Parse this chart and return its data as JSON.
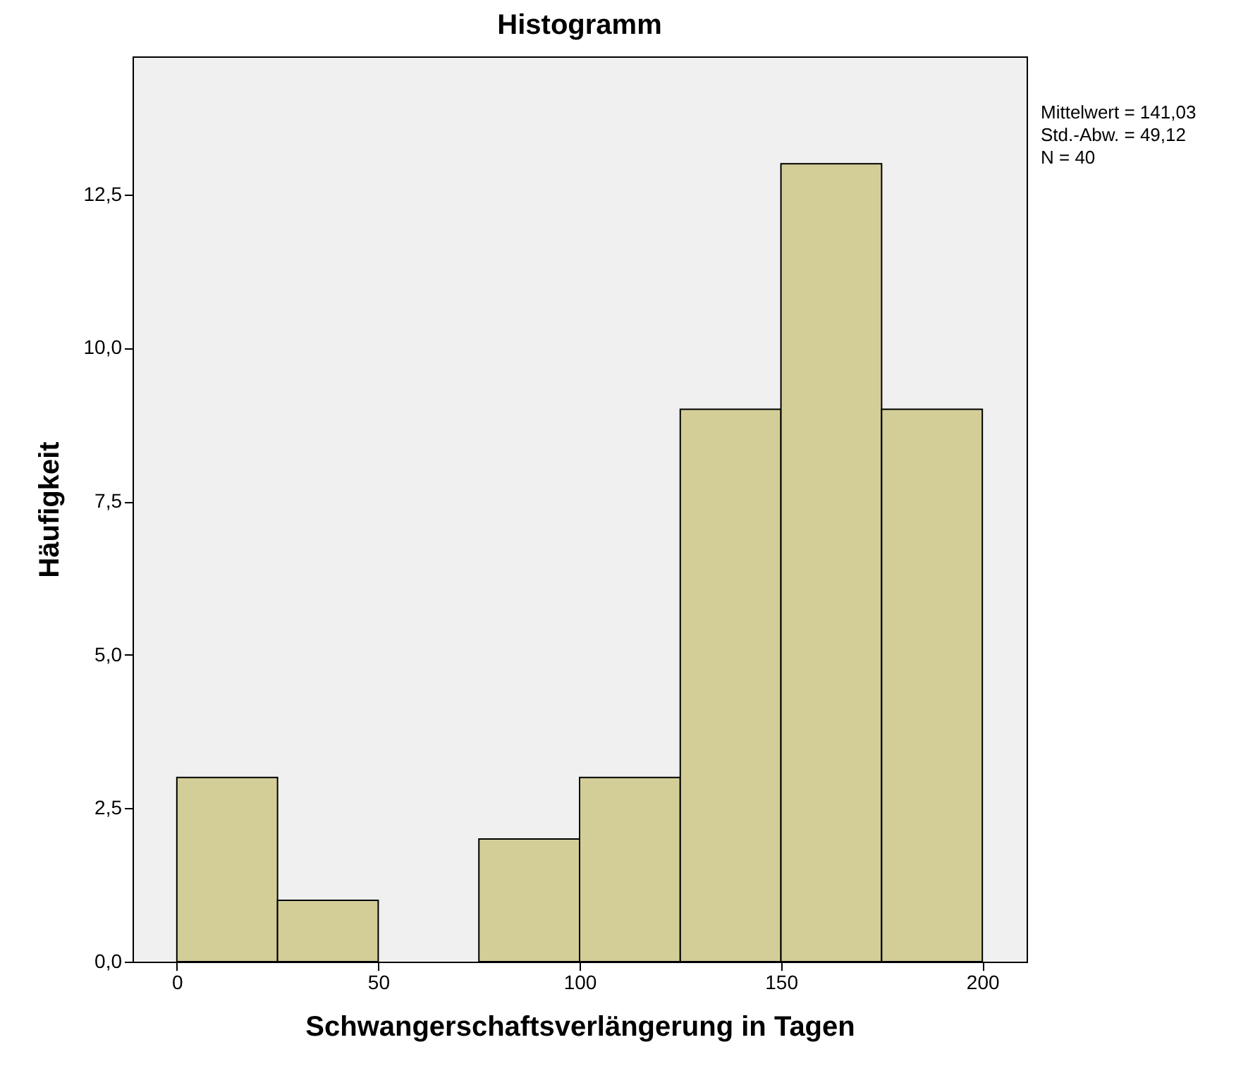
{
  "chart_data": {
    "type": "histogram",
    "title": "Histogramm",
    "xlabel": "Schwangerschaftsverlängerung in Tagen",
    "ylabel": "Häufigkeit",
    "bins": [
      0,
      25,
      50,
      75,
      100,
      125,
      150,
      175,
      200
    ],
    "values": [
      3,
      1,
      0,
      2,
      3,
      9,
      13,
      9
    ],
    "color": "#d3ce98",
    "xlim": [
      -11,
      211
    ],
    "xticks": [
      0,
      50,
      100,
      150,
      200
    ],
    "ylim": [
      0,
      14.75
    ],
    "yticks": [
      {
        "value": 0,
        "label": "0,0"
      },
      {
        "value": 2.5,
        "label": "2,5"
      },
      {
        "value": 5,
        "label": "5,0"
      },
      {
        "value": 7.5,
        "label": "7,5"
      },
      {
        "value": 10,
        "label": "10,0"
      },
      {
        "value": 12.5,
        "label": "12,5"
      }
    ],
    "annotations": [
      "Mittelwert = 141,03",
      "Std.-Abw. = 49,12",
      "N = 40"
    ],
    "grid": false
  }
}
